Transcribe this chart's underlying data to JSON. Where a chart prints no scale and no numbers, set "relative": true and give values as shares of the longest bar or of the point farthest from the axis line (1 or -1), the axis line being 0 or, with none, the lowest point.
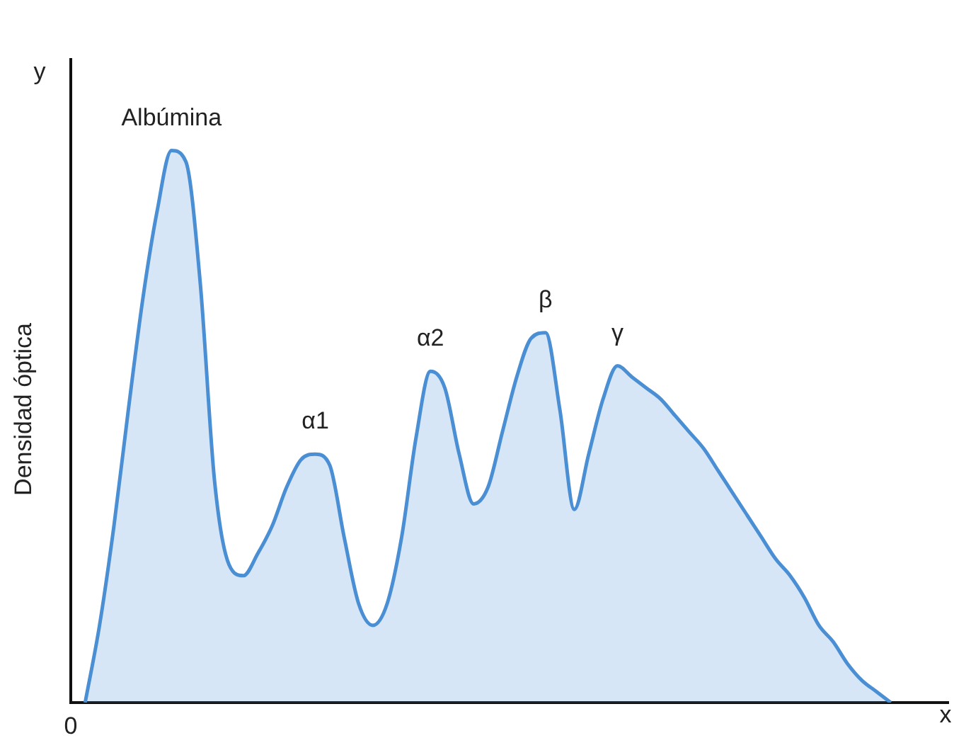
{
  "chart_data": {
    "type": "area",
    "relative": true,
    "ylabel": "Densidad óptica",
    "xlabel": "x",
    "categories": [
      null,
      null,
      null,
      null,
      null,
      null,
      null,
      null,
      null,
      null,
      null,
      null,
      null,
      null,
      null,
      null,
      null,
      null,
      null,
      null,
      null,
      null,
      null,
      null,
      null,
      null,
      null,
      null,
      null,
      null,
      null,
      null,
      null,
      null,
      null,
      null,
      null,
      null,
      null,
      null,
      null,
      null,
      null,
      null,
      null,
      null,
      null,
      null,
      null,
      null,
      null,
      null,
      null,
      null,
      null,
      null,
      null,
      null,
      null,
      null,
      null,
      null
    ],
    "series": [
      {
        "color": "#4a8fd4",
        "values": [
          null,
          0,
          0.14,
          0.32,
          0.53,
          0.73,
          0.89,
          1,
          0.98,
          0.76,
          0.4,
          0.25,
          0.23,
          0.27,
          0.32,
          0.39,
          0.44,
          0.45,
          0.43,
          0.3,
          0.18,
          0.14,
          0.18,
          0.3,
          0.48,
          0.6,
          0.57,
          0.45,
          0.36,
          0.39,
          0.49,
          0.59,
          0.66,
          0.67,
          0.53,
          0.35,
          0.45,
          0.55,
          0.61,
          0.59,
          0.57,
          0.55,
          0.52,
          0.49,
          0.46,
          0.42,
          0.38,
          0.34,
          0.3,
          0.26,
          0.23,
          0.19,
          0.14,
          0.11,
          0.07,
          0.04,
          0.02,
          0,
          null,
          null,
          null,
          null
        ]
      }
    ],
    "annotations": [
      "y",
      "0",
      {
        "text": "Albúmina",
        "y": 1
      },
      {
        "text": "α1",
        "y": 0.45
      },
      {
        "text": "α2",
        "y": 0.6
      },
      {
        "text": "β",
        "y": 0.67
      },
      {
        "text": "γ",
        "y": 0.61
      }
    ],
    "grid": false,
    "legend": false
  }
}
